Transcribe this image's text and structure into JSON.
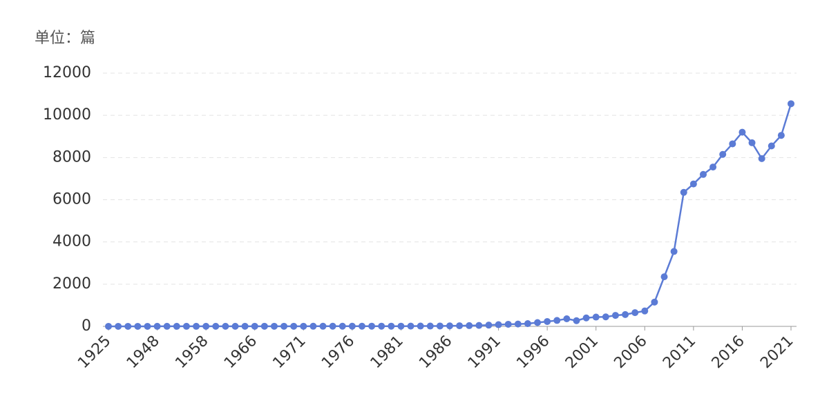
{
  "chart_data": {
    "type": "line",
    "title": "单位：篇",
    "categories": [
      "1925",
      null,
      null,
      null,
      null,
      "1948",
      null,
      null,
      null,
      null,
      "1958",
      null,
      null,
      null,
      null,
      "1966",
      null,
      null,
      null,
      null,
      "1971",
      null,
      null,
      null,
      null,
      "1976",
      null,
      null,
      null,
      null,
      "1981",
      null,
      null,
      null,
      null,
      "1986",
      null,
      null,
      null,
      null,
      "1991",
      null,
      null,
      null,
      null,
      "1996",
      null,
      null,
      null,
      null,
      "2001",
      null,
      null,
      null,
      null,
      "2006",
      null,
      null,
      null,
      null,
      "2011",
      null,
      null,
      null,
      null,
      "2016",
      null,
      null,
      null,
      null,
      "2021"
    ],
    "series": [
      {
        "color": "#5b7bd5",
        "values": [
          2,
          2,
          2,
          2,
          2,
          3,
          3,
          3,
          3,
          3,
          4,
          4,
          4,
          4,
          5,
          5,
          5,
          5,
          6,
          6,
          6,
          7,
          7,
          8,
          8,
          9,
          9,
          10,
          10,
          10,
          10,
          12,
          15,
          15,
          18,
          25,
          30,
          35,
          45,
          60,
          80,
          100,
          110,
          130,
          180,
          230,
          280,
          360,
          270,
          400,
          440,
          450,
          520,
          560,
          650,
          730,
          1150,
          2350,
          3550,
          6350,
          6750,
          7200,
          7550,
          8150,
          8650,
          9200,
          8700,
          7950,
          8550,
          9050,
          10550
        ]
      }
    ],
    "ylim": [
      0,
      12000
    ],
    "yticks": [
      0,
      2000,
      4000,
      6000,
      8000,
      10000,
      12000
    ],
    "grid": true
  }
}
